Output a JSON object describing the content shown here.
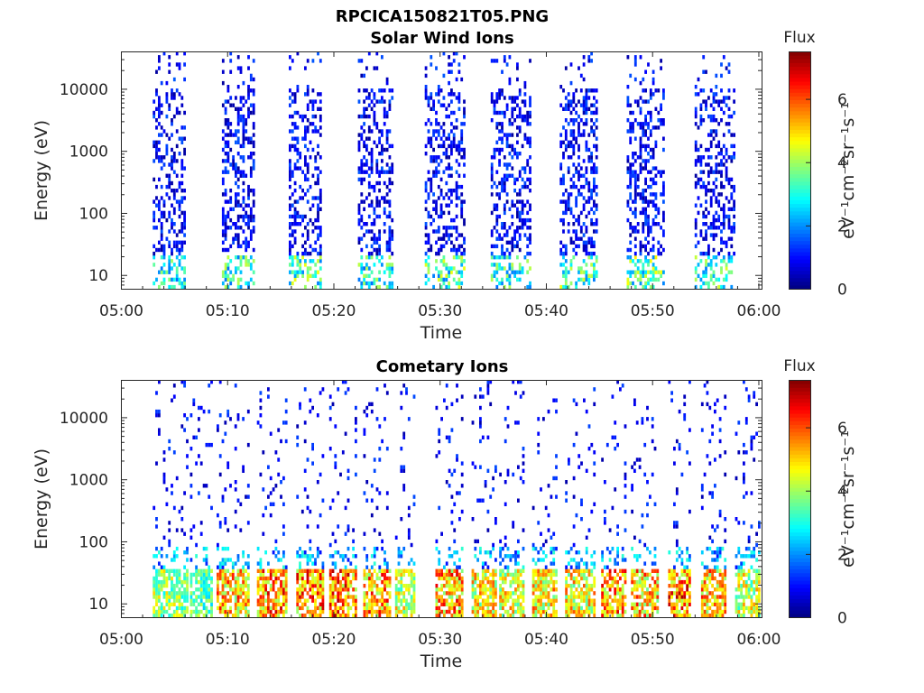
{
  "figure_title": "RPCICA150821T05.PNG",
  "colorbar": {
    "title": "Flux",
    "label": "eV⁻¹cm⁻²sr⁻¹s⁻¹",
    "ticks": [
      "0",
      "2",
      "4",
      "6"
    ],
    "range": [
      0,
      7.5
    ],
    "colormap": "jet"
  },
  "chart_data": [
    {
      "type": "heatmap",
      "title": "Solar Wind Ions",
      "xlabel": "Time",
      "ylabel": "Energy (eV)",
      "x_tick_labels": [
        "05:00",
        "05:10",
        "05:20",
        "05:30",
        "05:40",
        "05:50",
        "06:00"
      ],
      "x_ticks_min": [
        0,
        10,
        20,
        30,
        40,
        50,
        60
      ],
      "xlim_min": [
        0,
        60.3
      ],
      "y_scale": "log",
      "y_tick_labels": [
        "10",
        "100",
        "1000",
        "10000"
      ],
      "y_ticks": [
        10,
        100,
        1000,
        10000
      ],
      "ylim": [
        6,
        40000
      ],
      "grid": false,
      "bursts": [
        {
          "start_min": 3.0,
          "end_min": 6.0,
          "max_flux": 4.0
        },
        {
          "start_min": 9.5,
          "end_min": 12.6,
          "max_flux": 4.3
        },
        {
          "start_min": 15.8,
          "end_min": 18.8,
          "max_flux": 4.6
        },
        {
          "start_min": 22.3,
          "end_min": 25.5,
          "max_flux": 4.2
        },
        {
          "start_min": 28.6,
          "end_min": 32.2,
          "max_flux": 4.6
        },
        {
          "start_min": 34.8,
          "end_min": 38.6,
          "max_flux": 4.2
        },
        {
          "start_min": 41.3,
          "end_min": 44.8,
          "max_flux": 4.6
        },
        {
          "start_min": 47.6,
          "end_min": 51.0,
          "max_flux": 4.8
        },
        {
          "start_min": 54.0,
          "end_min": 57.8,
          "max_flux": 4.6
        }
      ]
    },
    {
      "type": "heatmap",
      "title": "Cometary Ions",
      "xlabel": "Time",
      "ylabel": "Energy (eV)",
      "x_tick_labels": [
        "05:00",
        "05:10",
        "05:20",
        "05:30",
        "05:40",
        "05:50",
        "06:00"
      ],
      "x_ticks_min": [
        0,
        10,
        20,
        30,
        40,
        50,
        60
      ],
      "xlim_min": [
        0,
        60.3
      ],
      "y_scale": "log",
      "y_tick_labels": [
        "10",
        "100",
        "1000",
        "10000"
      ],
      "y_ticks": [
        10,
        100,
        1000,
        10000
      ],
      "ylim": [
        6,
        40000
      ],
      "grid": false,
      "bursts": [
        {
          "start_min": 3.0,
          "end_min": 6.2,
          "max_flux": 5.0
        },
        {
          "start_min": 6.5,
          "end_min": 8.6,
          "max_flux": 4.5
        },
        {
          "start_min": 9.0,
          "end_min": 12.0,
          "max_flux": 6.5
        },
        {
          "start_min": 12.8,
          "end_min": 15.5,
          "max_flux": 7.0
        },
        {
          "start_min": 16.5,
          "end_min": 18.9,
          "max_flux": 7.0
        },
        {
          "start_min": 19.6,
          "end_min": 22.2,
          "max_flux": 7.2
        },
        {
          "start_min": 22.8,
          "end_min": 25.2,
          "max_flux": 6.8
        },
        {
          "start_min": 25.8,
          "end_min": 27.6,
          "max_flux": 5.5
        },
        {
          "start_min": 29.6,
          "end_min": 32.2,
          "max_flux": 6.8
        },
        {
          "start_min": 33.0,
          "end_min": 35.2,
          "max_flux": 6.0
        },
        {
          "start_min": 35.6,
          "end_min": 38.0,
          "max_flux": 5.8
        },
        {
          "start_min": 38.7,
          "end_min": 41.0,
          "max_flux": 6.2
        },
        {
          "start_min": 41.8,
          "end_min": 44.5,
          "max_flux": 6.0
        },
        {
          "start_min": 45.2,
          "end_min": 47.6,
          "max_flux": 6.8
        },
        {
          "start_min": 48.0,
          "end_min": 50.5,
          "max_flux": 6.5
        },
        {
          "start_min": 51.5,
          "end_min": 53.5,
          "max_flux": 7.2
        },
        {
          "start_min": 54.6,
          "end_min": 57.0,
          "max_flux": 6.5
        },
        {
          "start_min": 57.8,
          "end_min": 60.0,
          "max_flux": 5.5
        }
      ]
    }
  ]
}
